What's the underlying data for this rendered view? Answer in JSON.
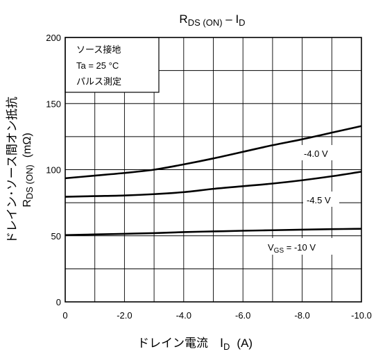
{
  "chart_data": {
    "type": "line",
    "title": {
      "main": "R",
      "sub": "DS (ON)",
      "sep": " – I",
      "sub2": "D"
    },
    "xlabel": {
      "main": "ドレイン電流　I",
      "sub": "D",
      "unit": "(A)"
    },
    "ylabel": {
      "line1": "ドレイン･ソース間オン抵抗",
      "line2": "R",
      "line2_sub": "DS (ON)",
      "line2_unit": "(mΩ)"
    },
    "xlim": [
      0,
      -10
    ],
    "ylim": [
      0,
      200
    ],
    "x_ticks": [
      {
        "value": 0,
        "label": "0"
      },
      {
        "value": -2,
        "label": "-2.0"
      },
      {
        "value": -4,
        "label": "-4.0"
      },
      {
        "value": -6,
        "label": "-6.0"
      },
      {
        "value": -8,
        "label": "-8.0"
      },
      {
        "value": -10,
        "label": "-10.0"
      }
    ],
    "y_ticks": [
      {
        "value": 0,
        "label": "0"
      },
      {
        "value": 50,
        "label": "50"
      },
      {
        "value": 100,
        "label": "100"
      },
      {
        "value": 150,
        "label": "150"
      },
      {
        "value": 200,
        "label": "200"
      }
    ],
    "grid": true,
    "conditions": [
      "ソース接地",
      "Ta = 25 °C",
      "パルス測定"
    ],
    "series": [
      {
        "name": "-4.0 V",
        "color": "#000000",
        "x": [
          0,
          -1,
          -2,
          -3,
          -4,
          -5,
          -6,
          -7,
          -8,
          -9,
          -10
        ],
        "y": [
          93.5,
          95.5,
          97.5,
          100,
          104,
          108.5,
          113.5,
          118.5,
          123,
          128,
          133
        ]
      },
      {
        "name": "-4.5 V",
        "color": "#000000",
        "x": [
          0,
          -1,
          -2,
          -3,
          -4,
          -5,
          -6,
          -7,
          -8,
          -9,
          -10
        ],
        "y": [
          79.5,
          80,
          80.5,
          81.5,
          83,
          85.5,
          87.5,
          89.5,
          92,
          95,
          98.5
        ]
      },
      {
        "name": "V",
        "name_sub": "GS",
        "name_suffix": " = -10 V",
        "color": "#000000",
        "x": [
          0,
          -1,
          -2,
          -3,
          -4,
          -5,
          -6,
          -7,
          -8,
          -9,
          -10
        ],
        "y": [
          50.5,
          51,
          51.5,
          52,
          52.8,
          53.3,
          53.8,
          54.2,
          54.6,
          55,
          55.3
        ]
      }
    ]
  }
}
